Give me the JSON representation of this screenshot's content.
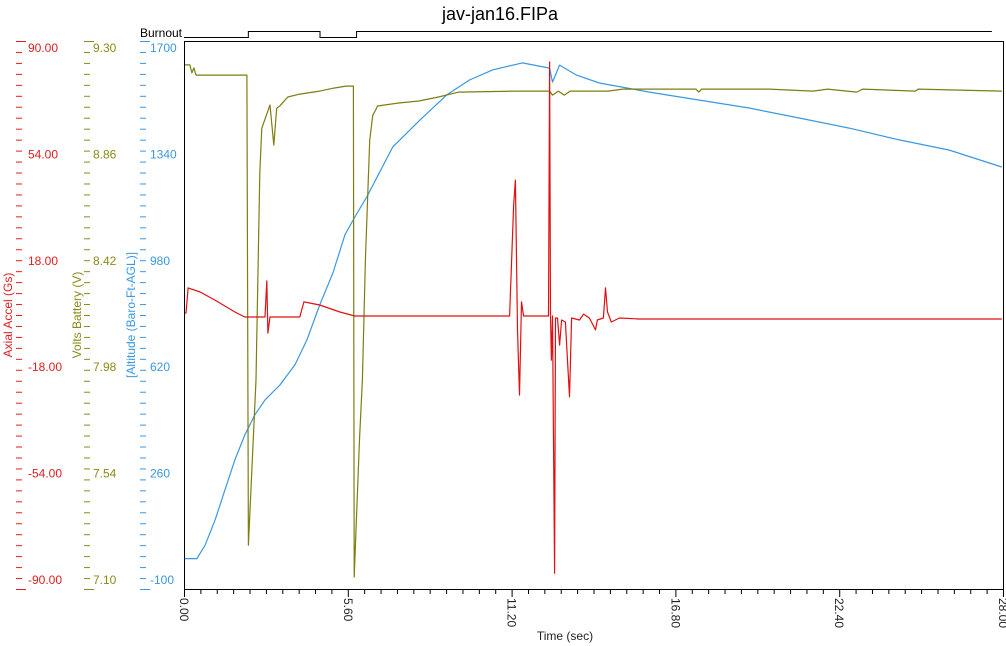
{
  "chart_data": {
    "type": "line",
    "title": "jav-jan16.FIPa",
    "xlabel": "Time (sec)",
    "xlim": [
      0,
      28
    ],
    "x_ticks": [
      "0.00",
      "5.60",
      "11.20",
      "16.80",
      "22.40",
      "28.00"
    ],
    "burnout": {
      "label": "Burnout",
      "steps": [
        [
          0,
          0
        ],
        [
          2.2,
          1
        ],
        [
          4.65,
          0
        ],
        [
          5.9,
          1
        ],
        [
          27.62,
          1
        ]
      ]
    },
    "axes": [
      {
        "id": "accel",
        "label": "Axial Accel (Gs)",
        "color": "#e02020",
        "ylim": [
          -90,
          90
        ],
        "ticks": [
          "90.00",
          "54.00",
          "18.00",
          "-18.00",
          "-54.00",
          "-90.00"
        ]
      },
      {
        "id": "volts",
        "label": "Volts Battery (V)",
        "color": "#8a8a1a",
        "ylim": [
          7.1,
          9.3
        ],
        "ticks": [
          "9.30",
          "8.86",
          "8.42",
          "7.98",
          "7.54",
          "7.10"
        ]
      },
      {
        "id": "alt",
        "label": "[Altitude (Baro-Ft-AGL)]",
        "color": "#3a98e0",
        "ylim": [
          -100,
          1700
        ],
        "ticks": [
          "1700",
          "1340",
          "980",
          "620",
          "260",
          "-100"
        ]
      }
    ],
    "series": [
      {
        "name": "Altitude (Baro-Ft-AGL)",
        "axis": "alt",
        "color": "#3a98e0",
        "points": [
          [
            0,
            0
          ],
          [
            0.44,
            0
          ],
          [
            0.72,
            44
          ],
          [
            1.06,
            126
          ],
          [
            1.4,
            225
          ],
          [
            1.74,
            324
          ],
          [
            2.08,
            406
          ],
          [
            2.42,
            472
          ],
          [
            2.77,
            521
          ],
          [
            3.28,
            570
          ],
          [
            3.79,
            636
          ],
          [
            4.2,
            718
          ],
          [
            4.64,
            833
          ],
          [
            5.09,
            938
          ],
          [
            5.5,
            1063
          ],
          [
            5.84,
            1122
          ],
          [
            6.25,
            1188
          ],
          [
            7.14,
            1352
          ],
          [
            8.06,
            1440
          ],
          [
            8.98,
            1523
          ],
          [
            9.76,
            1572
          ],
          [
            10.55,
            1605
          ],
          [
            11.57,
            1628
          ],
          [
            12.5,
            1611
          ],
          [
            12.6,
            1565
          ],
          [
            12.84,
            1621
          ],
          [
            13.42,
            1588
          ],
          [
            14.2,
            1562
          ],
          [
            15.91,
            1532
          ],
          [
            17.62,
            1506
          ],
          [
            19.32,
            1480
          ],
          [
            21.03,
            1447
          ],
          [
            22.74,
            1414
          ],
          [
            24.45,
            1375
          ],
          [
            26.15,
            1342
          ],
          [
            27.96,
            1286
          ]
        ]
      },
      {
        "name": "Volts Battery",
        "axis": "volts",
        "color": "#7d7d10",
        "points": [
          [
            0,
            9.204
          ],
          [
            0.2,
            9.204
          ],
          [
            0.27,
            9.172
          ],
          [
            0.34,
            9.192
          ],
          [
            0.41,
            9.163
          ],
          [
            2.15,
            9.163
          ],
          [
            2.2,
            7.276
          ],
          [
            2.46,
            7.94
          ],
          [
            2.59,
            8.77
          ],
          [
            2.66,
            8.95
          ],
          [
            2.94,
            9.043
          ],
          [
            3.07,
            8.882
          ],
          [
            3.17,
            9.03
          ],
          [
            3.28,
            9.04
          ],
          [
            3.55,
            9.075
          ],
          [
            3.96,
            9.087
          ],
          [
            4.64,
            9.099
          ],
          [
            5.12,
            9.111
          ],
          [
            5.53,
            9.119
          ],
          [
            5.79,
            9.119
          ],
          [
            5.82,
            7.148
          ],
          [
            6.0,
            7.7
          ],
          [
            6.1,
            7.94
          ],
          [
            6.2,
            8.42
          ],
          [
            6.35,
            8.9
          ],
          [
            6.45,
            9.0
          ],
          [
            6.62,
            9.039
          ],
          [
            7.34,
            9.051
          ],
          [
            8.03,
            9.059
          ],
          [
            8.7,
            9.075
          ],
          [
            9.39,
            9.095
          ],
          [
            11.4,
            9.099
          ],
          [
            12.5,
            9.099
          ],
          [
            12.6,
            9.083
          ],
          [
            12.8,
            9.099
          ],
          [
            13.0,
            9.083
          ],
          [
            13.2,
            9.099
          ],
          [
            14.5,
            9.099
          ],
          [
            15.0,
            9.107
          ],
          [
            17.5,
            9.107
          ],
          [
            17.6,
            9.095
          ],
          [
            17.7,
            9.107
          ],
          [
            20,
            9.107
          ],
          [
            21.5,
            9.099
          ],
          [
            22,
            9.107
          ],
          [
            23,
            9.095
          ],
          [
            23.2,
            9.107
          ],
          [
            25,
            9.099
          ],
          [
            25.1,
            9.107
          ],
          [
            27.96,
            9.099
          ]
        ]
      },
      {
        "name": "Axial Accel",
        "axis": "accel",
        "color": "#e01010",
        "points": [
          [
            0,
            0.65
          ],
          [
            0.07,
            0.65
          ],
          [
            0.14,
            8.9
          ],
          [
            0.55,
            7.55
          ],
          [
            1.06,
            4.9
          ],
          [
            1.74,
            0.98
          ],
          [
            2.08,
            -0.67
          ],
          [
            2.77,
            -0.67
          ],
          [
            2.83,
            11.2
          ],
          [
            2.87,
            -5.9
          ],
          [
            2.94,
            -0.67
          ],
          [
            3.96,
            -0.67
          ],
          [
            4.1,
            4.3
          ],
          [
            4.64,
            3.3
          ],
          [
            5.33,
            0.98
          ],
          [
            5.84,
            -0.34
          ],
          [
            11.13,
            -0.34
          ],
          [
            11.27,
            35.8
          ],
          [
            11.33,
            44.3
          ],
          [
            11.4,
            -4.9
          ],
          [
            11.47,
            -26.3
          ],
          [
            11.54,
            4.3
          ],
          [
            11.61,
            -0.34
          ],
          [
            12.46,
            -0.34
          ],
          [
            12.5,
            83.1
          ],
          [
            12.53,
            -0.34
          ],
          [
            12.56,
            -14.8
          ],
          [
            12.6,
            -0.34
          ],
          [
            12.67,
            -84.8
          ],
          [
            12.7,
            -1.0
          ],
          [
            12.77,
            -1.0
          ],
          [
            12.84,
            -9.9
          ],
          [
            12.91,
            -1.65
          ],
          [
            13.04,
            -2.3
          ],
          [
            13.18,
            -26.9
          ],
          [
            13.25,
            -1.0
          ],
          [
            13.52,
            -1.65
          ],
          [
            13.66,
            0.3
          ],
          [
            13.86,
            -1.0
          ],
          [
            14.07,
            -4.9
          ],
          [
            14.13,
            -1.65
          ],
          [
            14.34,
            -1.0
          ],
          [
            14.41,
            8.9
          ],
          [
            14.48,
            0.98
          ],
          [
            14.61,
            -2.3
          ],
          [
            14.89,
            -1.0
          ],
          [
            15.57,
            -1.3
          ],
          [
            27.96,
            -1.3
          ]
        ]
      }
    ]
  }
}
